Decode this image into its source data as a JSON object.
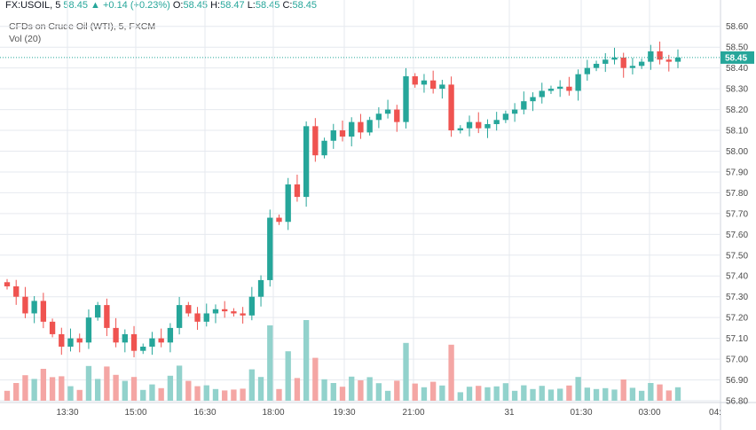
{
  "header": {
    "symbol": "FX:USOIL, 5",
    "last": "58.45",
    "arrow": "▲",
    "change": "+0.14 (+0.23%)",
    "o_label": "O:",
    "o_val": "58.45",
    "h_label": "H:",
    "h_val": "58.47",
    "l_label": "L:",
    "l_val": "58.45",
    "c_label": "C:",
    "c_val": "58.45",
    "subtitle": "CFDs on Crude Oil (WTI), 5, FXCM",
    "vol_label": "Vol (20)"
  },
  "colors": {
    "up": "#26a69a",
    "down": "#ef5350",
    "vol_up": "#92d2cc",
    "vol_down": "#f4a6a4",
    "grid": "#e6e9ef",
    "price_line": "#26a69a"
  },
  "chart_data": {
    "type": "candlestick",
    "title": "CFDs on Crude Oil (WTI), 5, FXCM",
    "ylim": [
      56.8,
      58.65
    ],
    "y_ticks": [
      "58.60",
      "58.50",
      "58.40",
      "58.30",
      "58.20",
      "58.10",
      "58.00",
      "57.90",
      "57.80",
      "57.70",
      "57.60",
      "57.50",
      "57.40",
      "57.30",
      "57.20",
      "57.10",
      "57.00",
      "56.90",
      "56.80"
    ],
    "x_ticks": [
      "13:30",
      "15:00",
      "16:30",
      "18:00",
      "19:30",
      "21:00",
      "31",
      "01:30",
      "03:00",
      "04:"
    ],
    "last_price": 58.45,
    "last_price_label": "58.45",
    "grid": true,
    "series": [
      {
        "t": 0,
        "c": 57.35
      },
      {
        "t": 1,
        "c": 57.3
      },
      {
        "t": 2,
        "c": 57.22
      },
      {
        "t": 3,
        "c": 57.28
      },
      {
        "t": 4,
        "c": 57.18
      },
      {
        "t": 5,
        "c": 57.12
      },
      {
        "t": 6,
        "c": 57.06
      },
      {
        "t": 7,
        "c": 57.1
      },
      {
        "t": 8,
        "c": 57.08
      },
      {
        "t": 9,
        "c": 57.2
      },
      {
        "t": 10,
        "c": 57.26
      },
      {
        "t": 11,
        "c": 57.15
      },
      {
        "t": 12,
        "c": 57.08
      },
      {
        "t": 13,
        "c": 57.12
      },
      {
        "t": 14,
        "c": 57.04
      },
      {
        "t": 15,
        "c": 57.06
      },
      {
        "t": 16,
        "c": 57.1
      },
      {
        "t": 17,
        "c": 57.08
      },
      {
        "t": 18,
        "c": 57.15
      },
      {
        "t": 19,
        "c": 57.26
      },
      {
        "t": 20,
        "c": 57.22
      },
      {
        "t": 21,
        "c": 57.18
      },
      {
        "t": 22,
        "c": 57.22
      },
      {
        "t": 23,
        "c": 57.24
      },
      {
        "t": 24,
        "c": 57.23
      },
      {
        "t": 25,
        "c": 57.22
      },
      {
        "t": 26,
        "c": 57.21
      },
      {
        "t": 27,
        "c": 57.3
      },
      {
        "t": 28,
        "c": 57.38
      },
      {
        "t": 29,
        "c": 57.68
      },
      {
        "t": 30,
        "c": 57.66
      },
      {
        "t": 31,
        "c": 57.84
      },
      {
        "t": 32,
        "c": 57.78
      },
      {
        "t": 33,
        "c": 58.12
      },
      {
        "t": 34,
        "c": 57.98
      },
      {
        "t": 35,
        "c": 58.05
      },
      {
        "t": 36,
        "c": 58.1
      },
      {
        "t": 37,
        "c": 58.07
      },
      {
        "t": 38,
        "c": 58.14
      },
      {
        "t": 39,
        "c": 58.09
      },
      {
        "t": 40,
        "c": 58.15
      },
      {
        "t": 41,
        "c": 58.18
      },
      {
        "t": 42,
        "c": 58.2
      },
      {
        "t": 43,
        "c": 58.14
      },
      {
        "t": 44,
        "c": 58.36
      },
      {
        "t": 45,
        "c": 58.32
      },
      {
        "t": 46,
        "c": 58.34
      },
      {
        "t": 47,
        "c": 58.3
      },
      {
        "t": 48,
        "c": 58.32
      },
      {
        "t": 49,
        "c": 58.1
      },
      {
        "t": 50,
        "c": 58.11
      },
      {
        "t": 51,
        "c": 58.14
      },
      {
        "t": 52,
        "c": 58.11
      },
      {
        "t": 53,
        "c": 58.13
      },
      {
        "t": 54,
        "c": 58.15
      },
      {
        "t": 55,
        "c": 58.18
      },
      {
        "t": 56,
        "c": 58.2
      },
      {
        "t": 57,
        "c": 58.24
      },
      {
        "t": 58,
        "c": 58.26
      },
      {
        "t": 59,
        "c": 58.29
      },
      {
        "t": 60,
        "c": 58.3
      },
      {
        "t": 61,
        "c": 58.31
      },
      {
        "t": 62,
        "c": 58.29
      },
      {
        "t": 63,
        "c": 58.37
      },
      {
        "t": 64,
        "c": 58.4
      },
      {
        "t": 65,
        "c": 58.42
      },
      {
        "t": 66,
        "c": 58.44
      },
      {
        "t": 67,
        "c": 58.45
      },
      {
        "t": 68,
        "c": 58.4
      },
      {
        "t": 69,
        "c": 58.41
      },
      {
        "t": 70,
        "c": 58.43
      },
      {
        "t": 71,
        "c": 58.48
      },
      {
        "t": 72,
        "c": 58.44
      },
      {
        "t": 73,
        "c": 58.43
      },
      {
        "t": 74,
        "c": 58.45
      }
    ]
  }
}
